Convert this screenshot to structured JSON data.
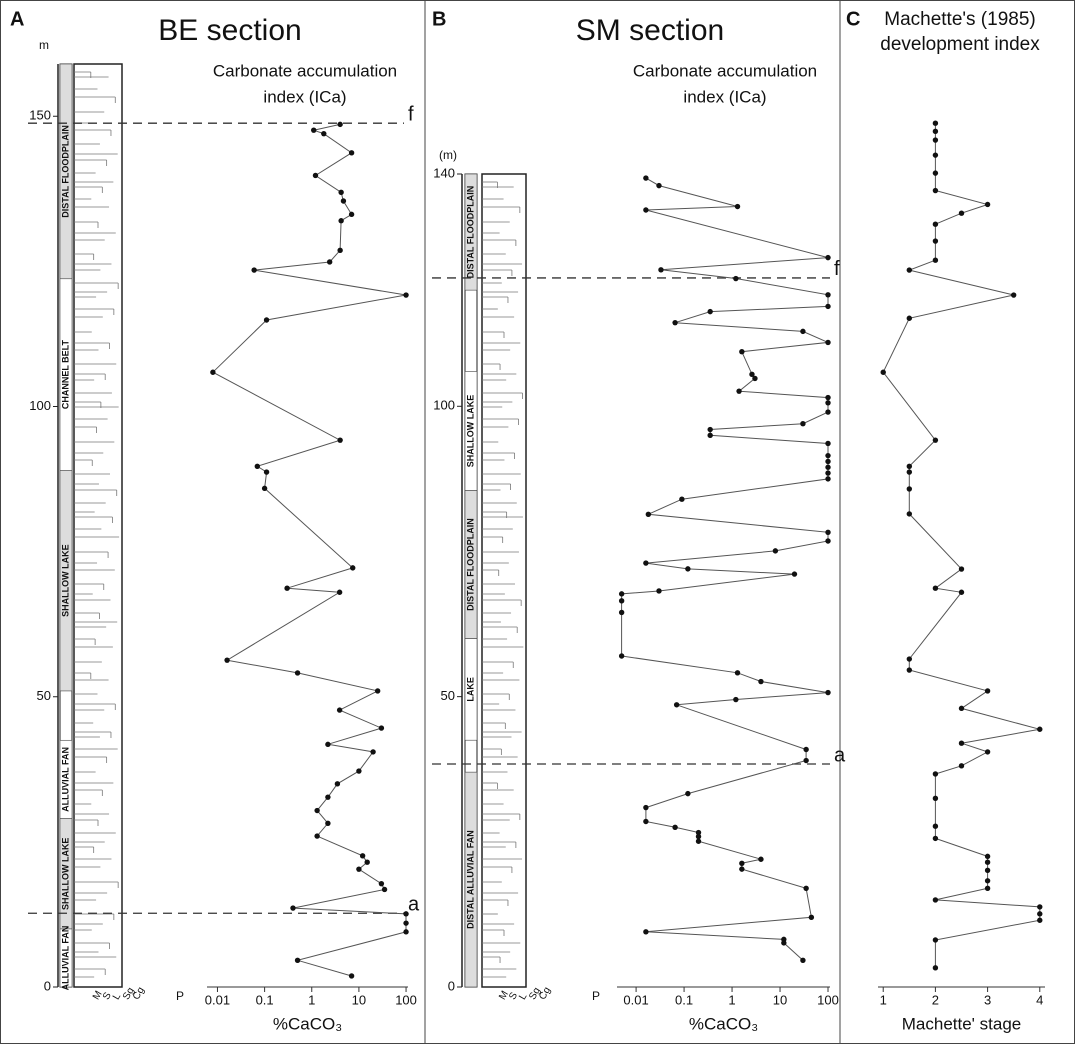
{
  "chart_data": [
    {
      "type": "line",
      "panel": "A",
      "title": "BE section",
      "subtitle": [
        "Carbonate accumulation",
        "index (ICa)"
      ],
      "xlabel": "%CaCO₃",
      "log_x": true,
      "xlim": [
        0.006,
        110
      ],
      "xticks": [
        0.01,
        0.1,
        1,
        10,
        100
      ],
      "ylim": [
        0,
        159
      ],
      "yticks": [
        0,
        50,
        100,
        150
      ],
      "y_unit": "m",
      "color": "#555555",
      "facies": [
        {
          "label": "DISTAL FLOODPLAIN",
          "from": 122,
          "to": 159
        },
        {
          "label": "CHANNEL BELT",
          "from": 89,
          "to": 122
        },
        {
          "label": "SHALLOW LAKE",
          "from": 51,
          "to": 89
        },
        {
          "label": "ALLUVIAL FAN",
          "from": 29,
          "to": 42.5
        },
        {
          "label": "SHALLOW LAKE",
          "from": 10,
          "to": 29
        },
        {
          "label": "ALLUVIAL FAN",
          "from": 0,
          "to": 10
        }
      ],
      "grain_size_labels": [
        "M",
        "S",
        "L",
        "Sg",
        "Cg"
      ],
      "p_label": "P",
      "markers": [
        {
          "label": "f",
          "depth": 148.8
        },
        {
          "label": "a",
          "depth": 12.7
        }
      ],
      "depth": [
        148.6,
        147.6,
        147,
        143.7,
        139.8,
        136.9,
        135.4,
        133.1,
        132,
        126.9,
        124.9,
        123.5,
        119.2,
        114.9,
        105.9,
        94.2,
        89.7,
        88.7,
        85.9,
        72.2,
        68.7,
        68,
        56.3,
        54.1,
        51,
        47.7,
        44.6,
        41.8,
        40.5,
        37.2,
        35,
        32.7,
        30.4,
        28.2,
        26,
        22.6,
        21.5,
        20.3,
        17.8,
        16.8,
        13.6,
        12.6,
        11,
        9.5,
        4.6,
        1.9
      ],
      "values": [
        4,
        1.1,
        1.8,
        7,
        1.2,
        4.2,
        4.7,
        7,
        4.2,
        4,
        2.4,
        0.06,
        100,
        0.11,
        0.008,
        4,
        0.07,
        0.11,
        0.1,
        7.4,
        0.3,
        3.9,
        0.016,
        0.5,
        25,
        3.9,
        30,
        2.2,
        20,
        10,
        3.5,
        2.2,
        1.3,
        2.2,
        1.3,
        12,
        15,
        10,
        30,
        35,
        0.4,
        100,
        100,
        100,
        0.5,
        7
      ]
    },
    {
      "type": "line",
      "panel": "B",
      "title": "SM section",
      "subtitle": [
        "Carbonate accumulation",
        "index (ICa)"
      ],
      "xlabel": "%CaCO₃",
      "log_x": true,
      "xlim": [
        0.004,
        110
      ],
      "xticks": [
        0.01,
        0.1,
        1,
        10,
        100
      ],
      "ylim": [
        0,
        140
      ],
      "yticks": [
        0,
        50,
        100,
        140
      ],
      "y_unit": "(m)",
      "color": "#555555",
      "facies": [
        {
          "label": "DISTAL FLOODPLAIN",
          "from": 120,
          "to": 140
        },
        {
          "label": "SHALLOW LAKE",
          "from": 85.5,
          "to": 106
        },
        {
          "label": "DISTAL FLOODPLAIN",
          "from": 60,
          "to": 85.5
        },
        {
          "label": "LAKE",
          "from": 42.5,
          "to": 60
        },
        {
          "label": "DISTAL ALLUVIAL FAN",
          "from": 0,
          "to": 37
        }
      ],
      "grain_size_labels": [
        "M",
        "S",
        "L",
        "Sg",
        "Cg"
      ],
      "p_label": "P",
      "markers": [
        {
          "label": "f",
          "depth": 122.1
        },
        {
          "label": "a",
          "depth": 38.4
        }
      ],
      "depth": [
        139.3,
        138,
        134.4,
        133.8,
        125.6,
        123.5,
        122,
        119.2,
        117.2,
        116.3,
        114.4,
        112.9,
        111,
        109.4,
        105.5,
        104.8,
        102.6,
        101.5,
        100.6,
        99,
        97,
        96,
        95,
        93.6,
        91.5,
        90.5,
        89.5,
        88.5,
        87.5,
        84,
        81.4,
        78.3,
        76.8,
        75.1,
        73,
        72,
        71.1,
        68.2,
        67.7,
        66.5,
        64.5,
        57,
        54.1,
        52.6,
        50.7,
        49.5,
        48.6,
        40.9,
        39,
        33.3,
        30.9,
        28.5,
        27.5,
        26.6,
        25.9,
        25.1,
        22,
        21.3,
        20.3,
        17,
        12,
        9.5,
        8.2,
        7.6,
        4.6
      ],
      "values": [
        0.016,
        0.03,
        1.3,
        0.016,
        100,
        0.033,
        1.2,
        100,
        100,
        0.35,
        0.065,
        30,
        100,
        1.6,
        2.6,
        3,
        1.4,
        100,
        100,
        100,
        30,
        0.35,
        0.35,
        100,
        100,
        100,
        100,
        100,
        100,
        0.09,
        0.018,
        100,
        100,
        8,
        0.016,
        0.12,
        20,
        0.03,
        0.005,
        0.005,
        0.005,
        0.005,
        1.3,
        4,
        100,
        1.2,
        0.07,
        35,
        35,
        0.12,
        0.016,
        0.016,
        0.065,
        0.2,
        0.2,
        0.2,
        4,
        1.6,
        1.6,
        35,
        45,
        0.016,
        12,
        12,
        30
      ]
    },
    {
      "type": "line",
      "panel": "C",
      "title": [
        "Machette's (1985)",
        "development index"
      ],
      "xlabel": "Machette' stage",
      "log_x": false,
      "xlim": [
        0.9,
        4.1
      ],
      "xticks": [
        1,
        2,
        3,
        4
      ],
      "ylim": [
        0,
        159
      ],
      "color": "#555555",
      "depth": [
        148.8,
        147.4,
        145.9,
        143.3,
        140.2,
        137.2,
        134.8,
        133.3,
        131.4,
        128.5,
        125.2,
        123.5,
        119.2,
        115.2,
        105.9,
        94.2,
        89.7,
        88.7,
        85.8,
        81.5,
        72.0,
        68.7,
        68.0,
        56.5,
        54.6,
        51.0,
        48.0,
        44.4,
        42.0,
        40.5,
        38.1,
        36.7,
        32.5,
        27.7,
        25.6,
        22.5,
        21.5,
        20.1,
        18.3,
        17.0,
        15.0,
        13.8,
        12.6,
        11.5,
        8.1,
        3.3
      ],
      "values": [
        2,
        2,
        2,
        2,
        2,
        2,
        3,
        2.5,
        2,
        2,
        2,
        1.5,
        3.5,
        1.5,
        1,
        2,
        1.5,
        1.5,
        1.5,
        1.5,
        2.5,
        2,
        2.5,
        1.5,
        1.5,
        3,
        2.5,
        4,
        2.5,
        3,
        2.5,
        2,
        2,
        2,
        2,
        3,
        3,
        3,
        3,
        3,
        2,
        4,
        4,
        4,
        2,
        2
      ]
    }
  ]
}
